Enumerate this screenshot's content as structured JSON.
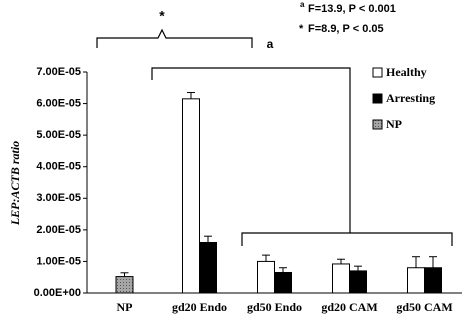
{
  "chart_data": {
    "type": "bar",
    "y_label": "LEP:ACTB ratio",
    "categories": [
      "NP",
      "gd20 Endo",
      "gd50 Endo",
      "gd20 CAM",
      "gd50 CAM"
    ],
    "series": [
      {
        "name": "Healthy",
        "color": "#ffffff",
        "values": [
          null,
          6.15e-05,
          1e-05,
          9.2e-06,
          8e-06
        ],
        "errors": [
          null,
          2e-06,
          2e-06,
          1.5e-06,
          3.5e-06
        ]
      },
      {
        "name": "Arresting",
        "color": "#000000",
        "values": [
          null,
          1.6e-05,
          6.5e-06,
          7e-06,
          8e-06
        ],
        "errors": [
          null,
          2e-06,
          1.5e-06,
          1.5e-06,
          3.5e-06
        ]
      },
      {
        "name": "NP",
        "color": "#a6a6a6",
        "values": [
          5.2e-06,
          null,
          null,
          null,
          null
        ],
        "errors": [
          1.2e-06,
          null,
          null,
          null,
          null
        ]
      }
    ],
    "ylim": [
      0,
      7e-05
    ],
    "yticks": [
      {
        "value": 0,
        "label": "0.00E+00"
      },
      {
        "value": 1e-05,
        "label": "1.00E-05"
      },
      {
        "value": 2e-05,
        "label": "2.00E-05"
      },
      {
        "value": 3e-05,
        "label": "3.00E-05"
      },
      {
        "value": 4e-05,
        "label": "4.00E-05"
      },
      {
        "value": 5e-05,
        "label": "5.00E-05"
      },
      {
        "value": 6e-05,
        "label": "6.00E-05"
      },
      {
        "value": 7e-05,
        "label": "7.00E-05"
      }
    ],
    "legend": "right",
    "annotations": [
      {
        "marker": "a",
        "text": "F=13.9, P < 0.001"
      },
      {
        "marker": "*",
        "text": "F=8.9, P < 0.05"
      }
    ],
    "bracket_labels": [
      "*",
      "a"
    ]
  }
}
